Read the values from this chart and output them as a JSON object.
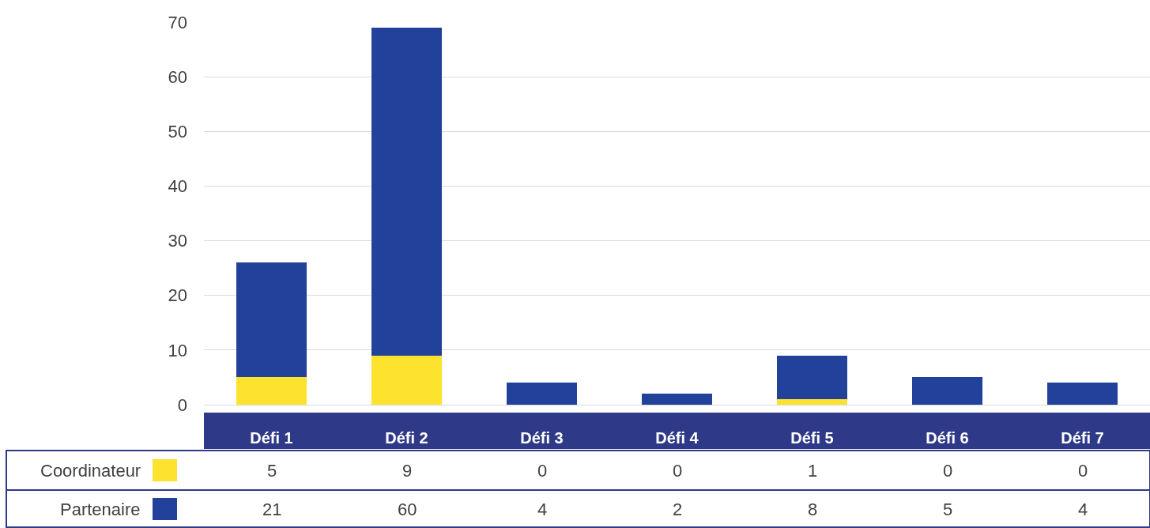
{
  "chart_data": {
    "type": "bar",
    "stacked": true,
    "categories": [
      "Défi 1",
      "Défi 2",
      "Défi 3",
      "Défi 4",
      "Défi 5",
      "Défi 6",
      "Défi 7"
    ],
    "series": [
      {
        "name": "Coordinateur",
        "color": "#fde22e",
        "values": [
          5,
          9,
          0,
          0,
          1,
          0,
          0
        ]
      },
      {
        "name": "Partenaire",
        "color": "#22419a",
        "values": [
          21,
          60,
          4,
          2,
          8,
          5,
          4
        ]
      }
    ],
    "ylim": [
      0,
      70
    ],
    "yticks": [
      0,
      10,
      20,
      30,
      40,
      50,
      60,
      70
    ],
    "grid": "y",
    "legend": "bottom left",
    "data_labels": true
  }
}
